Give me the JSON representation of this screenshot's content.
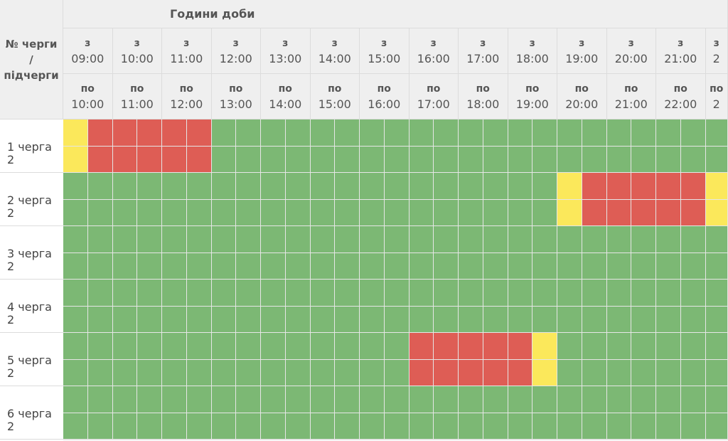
{
  "header": {
    "corner_lines": [
      "№ черги",
      "/",
      "підчерги"
    ],
    "title": "Години доби",
    "from_word": "з",
    "to_word": "по",
    "hours": [
      {
        "from": "09:00",
        "to": "10:00"
      },
      {
        "from": "10:00",
        "to": "11:00"
      },
      {
        "from": "11:00",
        "to": "12:00"
      },
      {
        "from": "12:00",
        "to": "13:00"
      },
      {
        "from": "13:00",
        "to": "14:00"
      },
      {
        "from": "14:00",
        "to": "15:00"
      },
      {
        "from": "15:00",
        "to": "16:00"
      },
      {
        "from": "16:00",
        "to": "17:00"
      },
      {
        "from": "17:00",
        "to": "18:00"
      },
      {
        "from": "18:00",
        "to": "19:00"
      },
      {
        "from": "19:00",
        "to": "20:00"
      },
      {
        "from": "20:00",
        "to": "21:00"
      },
      {
        "from": "21:00",
        "to": "22:00"
      },
      {
        "from": "2",
        "to": "2"
      }
    ]
  },
  "colors": {
    "on": "#7cb874",
    "off": "#de5d55",
    "maybe": "#fbe85b"
  },
  "rows": [
    {
      "label": "1 черга",
      "sub": "2",
      "status": [
        "maybe",
        "off",
        "off",
        "off",
        "off",
        "off",
        "on",
        "on",
        "on",
        "on",
        "on",
        "on",
        "on",
        "on",
        "on",
        "on",
        "on",
        "on",
        "on",
        "on",
        "on",
        "on",
        "on",
        "on",
        "on",
        "on",
        "on"
      ]
    },
    {
      "label": "2 черга",
      "sub": "2",
      "status": [
        "on",
        "on",
        "on",
        "on",
        "on",
        "on",
        "on",
        "on",
        "on",
        "on",
        "on",
        "on",
        "on",
        "on",
        "on",
        "on",
        "on",
        "on",
        "on",
        "on",
        "maybe",
        "off",
        "off",
        "off",
        "off",
        "off",
        "maybe"
      ]
    },
    {
      "label": "3 черга",
      "sub": "2",
      "status": [
        "on",
        "on",
        "on",
        "on",
        "on",
        "on",
        "on",
        "on",
        "on",
        "on",
        "on",
        "on",
        "on",
        "on",
        "on",
        "on",
        "on",
        "on",
        "on",
        "on",
        "on",
        "on",
        "on",
        "on",
        "on",
        "on",
        "on"
      ]
    },
    {
      "label": "4 черга",
      "sub": "2",
      "status": [
        "on",
        "on",
        "on",
        "on",
        "on",
        "on",
        "on",
        "on",
        "on",
        "on",
        "on",
        "on",
        "on",
        "on",
        "on",
        "on",
        "on",
        "on",
        "on",
        "on",
        "on",
        "on",
        "on",
        "on",
        "on",
        "on",
        "on"
      ]
    },
    {
      "label": "5 черга",
      "sub": "2",
      "status": [
        "on",
        "on",
        "on",
        "on",
        "on",
        "on",
        "on",
        "on",
        "on",
        "on",
        "on",
        "on",
        "on",
        "on",
        "off",
        "off",
        "off",
        "off",
        "off",
        "maybe",
        "on",
        "on",
        "on",
        "on",
        "on",
        "on",
        "on"
      ]
    },
    {
      "label": "6 черга",
      "sub": "2",
      "status": [
        "on",
        "on",
        "on",
        "on",
        "on",
        "on",
        "on",
        "on",
        "on",
        "on",
        "on",
        "on",
        "on",
        "on",
        "on",
        "on",
        "on",
        "on",
        "on",
        "on",
        "on",
        "on",
        "on",
        "on",
        "on",
        "on",
        "on"
      ]
    }
  ]
}
